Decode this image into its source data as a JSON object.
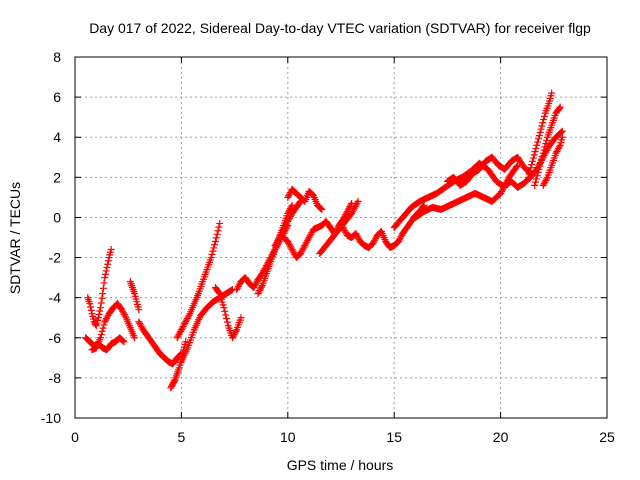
{
  "chart_data": {
    "type": "scatter",
    "title": "Day 017 of 2022, Sidereal Day-to-day VTEC variation (SDTVAR) for receiver flgp",
    "xlabel": "GPS time / hours",
    "ylabel": "SDTVAR / TECUs",
    "xlim": [
      0,
      25
    ],
    "ylim": [
      -10,
      8
    ],
    "xticks": [
      0,
      5,
      10,
      15,
      20,
      25
    ],
    "xtick_labels": [
      "0",
      "5",
      "10",
      "15",
      "20",
      "25"
    ],
    "yticks": [
      -10,
      -8,
      -6,
      -4,
      -2,
      0,
      2,
      4,
      6,
      8
    ],
    "ytick_labels": [
      "-10",
      "-8",
      "-6",
      "-4",
      "-2",
      "0",
      "2",
      "4",
      "6",
      "8"
    ],
    "grid": true,
    "marker": "+",
    "color": "#ff0000",
    "series": [
      {
        "x": [
          0.5,
          0.7,
          0.9,
          1.1,
          1.3,
          1.5,
          1.7,
          1.9,
          2.1,
          2.3
        ],
        "y": [
          -6.0,
          -6.2,
          -6.4,
          -6.3,
          -6.5,
          -6.6,
          -6.3,
          -6.2,
          -6.0,
          -6.2
        ]
      },
      {
        "x": [
          0.6,
          0.7,
          0.8,
          0.9,
          1.0,
          1.1,
          1.2,
          1.3,
          1.4,
          1.5,
          1.6,
          1.7
        ],
        "y": [
          -4.0,
          -4.3,
          -4.8,
          -5.2,
          -5.4,
          -5.0,
          -4.5,
          -3.8,
          -3.0,
          -2.5,
          -2.0,
          -1.6
        ]
      },
      {
        "x": [
          0.8,
          1.0,
          1.2,
          1.4,
          1.6,
          1.8,
          2.0,
          2.2,
          2.4,
          2.6,
          2.8
        ],
        "y": [
          -6.6,
          -6.5,
          -6.0,
          -5.2,
          -4.8,
          -4.5,
          -4.3,
          -4.6,
          -5.0,
          -5.5,
          -6.0
        ]
      },
      {
        "x": [
          2.6,
          2.7,
          2.8,
          2.9,
          3.0
        ],
        "y": [
          -3.2,
          -3.5,
          -3.8,
          -4.2,
          -4.6
        ]
      },
      {
        "x": [
          3.0,
          3.2,
          3.4,
          3.6,
          3.8,
          4.0,
          4.2,
          4.4,
          4.6,
          4.8,
          5.0
        ],
        "y": [
          -5.2,
          -5.6,
          -5.9,
          -6.2,
          -6.5,
          -6.8,
          -7.0,
          -7.2,
          -7.3,
          -7.0,
          -6.8
        ]
      },
      {
        "x": [
          4.5,
          4.6,
          4.7,
          4.8,
          4.9,
          5.0,
          5.1,
          5.2
        ],
        "y": [
          -8.5,
          -8.3,
          -8.1,
          -7.8,
          -7.5,
          -7.1,
          -6.6,
          -6.2
        ]
      },
      {
        "x": [
          4.8,
          5.0,
          5.2,
          5.4,
          5.6,
          5.8,
          6.0,
          6.2,
          6.4,
          6.6,
          6.8
        ],
        "y": [
          -6.0,
          -5.6,
          -5.2,
          -4.8,
          -4.3,
          -3.8,
          -3.2,
          -2.6,
          -2.0,
          -1.2,
          -0.3
        ]
      },
      {
        "x": [
          5.0,
          5.3,
          5.6,
          5.9,
          6.2,
          6.5,
          6.8,
          7.1,
          7.4
        ],
        "y": [
          -7.2,
          -6.5,
          -5.6,
          -4.9,
          -4.5,
          -4.2,
          -4.0,
          -3.8,
          -3.6
        ]
      },
      {
        "x": [
          6.6,
          6.8,
          7.0,
          7.2,
          7.4,
          7.6,
          7.8
        ],
        "y": [
          -3.5,
          -3.8,
          -4.5,
          -5.4,
          -6.0,
          -5.6,
          -5.0
        ]
      },
      {
        "x": [
          7.6,
          7.8,
          8.0,
          8.2,
          8.4,
          8.6,
          8.8,
          9.0,
          9.2,
          9.4,
          9.6,
          9.8,
          10.0
        ],
        "y": [
          -3.6,
          -3.2,
          -3.0,
          -3.3,
          -3.5,
          -3.1,
          -2.8,
          -2.4,
          -2.0,
          -1.6,
          -1.2,
          -0.8,
          -0.4
        ]
      },
      {
        "x": [
          8.6,
          8.8,
          9.0,
          9.2,
          9.4,
          9.6,
          9.8,
          10.0,
          10.2
        ],
        "y": [
          -3.8,
          -3.4,
          -2.8,
          -2.2,
          -1.6,
          -1.0,
          -0.4,
          0.2,
          0.6
        ]
      },
      {
        "x": [
          9.4,
          9.6,
          9.8,
          10.0,
          10.2,
          10.4,
          10.6
        ],
        "y": [
          -1.4,
          -1.0,
          -0.6,
          -0.2,
          0.2,
          0.5,
          0.8
        ]
      },
      {
        "x": [
          9.8,
          10.0,
          10.2,
          10.4,
          10.6,
          10.8,
          11.0,
          11.2,
          11.4,
          11.6,
          11.8,
          12.0,
          12.2,
          12.4,
          12.6,
          12.8,
          13.0
        ],
        "y": [
          -1.0,
          -1.2,
          -1.6,
          -2.0,
          -1.8,
          -1.4,
          -1.0,
          -0.6,
          -0.5,
          -0.4,
          -0.2,
          -0.5,
          -0.8,
          -0.4,
          -0.1,
          0.3,
          0.7
        ]
      },
      {
        "x": [
          10.0,
          10.2,
          10.4,
          10.6,
          10.8,
          11.0,
          11.2,
          11.4,
          11.6
        ],
        "y": [
          1.0,
          1.4,
          1.2,
          1.0,
          0.8,
          1.3,
          1.1,
          0.6,
          0.4
        ]
      },
      {
        "x": [
          11.5,
          11.8,
          12.1,
          12.4,
          12.7,
          13.0,
          13.3
        ],
        "y": [
          -1.8,
          -1.4,
          -1.0,
          -0.6,
          -0.2,
          0.2,
          0.8
        ]
      },
      {
        "x": [
          12.6,
          12.8,
          13.0,
          13.2,
          13.4,
          13.6,
          13.8,
          14.0,
          14.2,
          14.4,
          14.6,
          14.8,
          15.0,
          15.2,
          15.4,
          15.6,
          15.8,
          16.0,
          16.2,
          16.4
        ],
        "y": [
          -0.5,
          -0.9,
          -1.0,
          -0.8,
          -1.2,
          -1.4,
          -1.5,
          -1.3,
          -0.9,
          -0.7,
          -1.2,
          -1.5,
          -1.4,
          -1.2,
          -0.8,
          -0.5,
          -0.2,
          0.1,
          0.3,
          0.6
        ]
      },
      {
        "x": [
          15.0,
          15.4,
          15.8,
          16.2,
          16.6,
          17.0,
          17.4,
          17.8,
          18.2,
          18.6,
          19.0,
          19.4,
          19.8,
          20.2
        ],
        "y": [
          -0.5,
          0.0,
          0.5,
          0.8,
          1.0,
          1.2,
          1.5,
          1.8,
          2.0,
          2.3,
          2.7,
          2.4,
          1.8,
          1.5
        ]
      },
      {
        "x": [
          16.0,
          16.4,
          16.8,
          17.2,
          17.6,
          18.0,
          18.4,
          18.8,
          19.2,
          19.6,
          20.0,
          20.4,
          20.8
        ],
        "y": [
          0.0,
          0.3,
          0.5,
          0.4,
          0.6,
          0.8,
          1.0,
          1.2,
          1.0,
          0.8,
          1.2,
          2.0,
          2.6
        ]
      },
      {
        "x": [
          17.5,
          17.8,
          18.1,
          18.4,
          18.7,
          19.0,
          19.3,
          19.6,
          19.9,
          20.2,
          20.5,
          20.8,
          21.1,
          21.4
        ],
        "y": [
          1.8,
          2.0,
          1.6,
          1.8,
          2.2,
          2.4,
          2.8,
          3.0,
          2.6,
          2.4,
          2.8,
          3.0,
          2.5,
          2.2
        ]
      },
      {
        "x": [
          20.2,
          20.5,
          20.8,
          21.1,
          21.4,
          21.7,
          22.0,
          22.3,
          22.6,
          22.9
        ],
        "y": [
          1.6,
          1.8,
          1.5,
          1.7,
          2.0,
          2.4,
          3.0,
          3.6,
          4.0,
          4.3
        ]
      },
      {
        "x": [
          21.3,
          21.5,
          21.7,
          21.9,
          22.1,
          22.3,
          22.4
        ],
        "y": [
          2.0,
          2.8,
          3.6,
          4.4,
          5.2,
          5.8,
          6.2
        ]
      },
      {
        "x": [
          21.6,
          21.8,
          22.0,
          22.2,
          22.4,
          22.6,
          22.8
        ],
        "y": [
          1.6,
          2.4,
          3.2,
          4.0,
          4.6,
          5.2,
          5.5
        ]
      },
      {
        "x": [
          22.0,
          22.2,
          22.4,
          22.6,
          22.8,
          22.9
        ],
        "y": [
          1.6,
          2.0,
          2.6,
          3.2,
          3.6,
          4.0
        ]
      }
    ]
  }
}
